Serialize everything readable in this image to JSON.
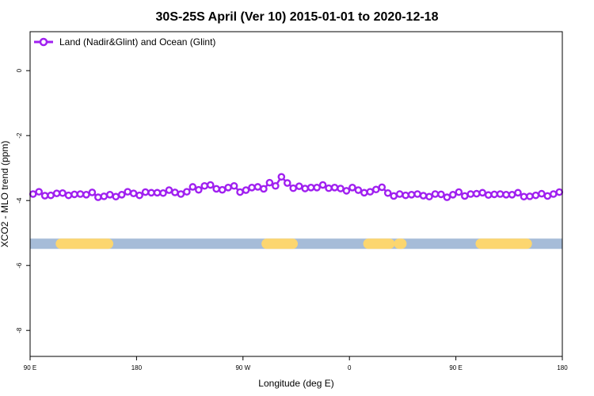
{
  "chart_data": {
    "type": "line",
    "title": "30S-25S April (Ver 10)   2015-01-01 to 2020-12-18",
    "xlabel": "Longitude (deg E)",
    "ylabel": "XCO2 - MLO trend (ppm)",
    "x_ticks": [
      {
        "value": 90,
        "label": "90 E"
      },
      {
        "value": 180,
        "label": "180"
      },
      {
        "value": 270,
        "label": "90 W"
      },
      {
        "value": 360,
        "label": "0"
      },
      {
        "value": 450,
        "label": "90 E"
      },
      {
        "value": 540,
        "label": "180"
      }
    ],
    "y_ticks": [
      {
        "value": 0,
        "label": "0"
      },
      {
        "value": -2,
        "label": "-2"
      },
      {
        "value": -4,
        "label": "-4"
      },
      {
        "value": -6,
        "label": "-6"
      },
      {
        "value": -8,
        "label": "-8"
      }
    ],
    "xlim": [
      90,
      540
    ],
    "ylim": [
      -8.8,
      1.2
    ],
    "legend": {
      "position": "top-left",
      "entries": [
        "Land (Nadir&Glint) and Ocean (Glint)"
      ]
    },
    "series": [
      {
        "name": "Land (Nadir&Glint) and Ocean (Glint)",
        "color": "#a020f0",
        "x": [
          92.5,
          97.5,
          102.5,
          107.5,
          112.5,
          117.5,
          122.5,
          127.5,
          132.5,
          137.5,
          142.5,
          147.5,
          152.5,
          157.5,
          162.5,
          167.5,
          172.5,
          177.5,
          182.5,
          187.5,
          192.5,
          197.5,
          202.5,
          207.5,
          212.5,
          217.5,
          222.5,
          227.5,
          232.5,
          237.5,
          242.5,
          247.5,
          252.5,
          257.5,
          262.5,
          267.5,
          272.5,
          277.5,
          282.5,
          287.5,
          292.5,
          297.5,
          302.5,
          307.5,
          312.5,
          317.5,
          322.5,
          327.5,
          332.5,
          337.5,
          342.5,
          347.5,
          352.5,
          357.5,
          362.5,
          367.5,
          372.5,
          377.5,
          382.5,
          387.5,
          392.5,
          397.5,
          402.5,
          407.5,
          412.5,
          417.5,
          422.5,
          427.5,
          432.5,
          437.5,
          442.5,
          447.5,
          452.5,
          457.5,
          462.5,
          467.5,
          472.5,
          477.5,
          482.5,
          487.5,
          492.5,
          497.5,
          502.5,
          507.5,
          512.5,
          517.5,
          522.5,
          527.5,
          532.5,
          537.5
        ],
        "y": [
          -3.8,
          -3.73,
          -3.85,
          -3.84,
          -3.78,
          -3.77,
          -3.84,
          -3.81,
          -3.8,
          -3.82,
          -3.75,
          -3.9,
          -3.87,
          -3.82,
          -3.88,
          -3.82,
          -3.73,
          -3.78,
          -3.84,
          -3.74,
          -3.76,
          -3.76,
          -3.77,
          -3.68,
          -3.75,
          -3.8,
          -3.73,
          -3.58,
          -3.67,
          -3.55,
          -3.52,
          -3.64,
          -3.67,
          -3.6,
          -3.55,
          -3.74,
          -3.68,
          -3.6,
          -3.58,
          -3.64,
          -3.45,
          -3.55,
          -3.27,
          -3.46,
          -3.62,
          -3.56,
          -3.63,
          -3.6,
          -3.6,
          -3.52,
          -3.62,
          -3.6,
          -3.63,
          -3.7,
          -3.6,
          -3.68,
          -3.76,
          -3.73,
          -3.66,
          -3.59,
          -3.77,
          -3.86,
          -3.8,
          -3.84,
          -3.82,
          -3.8,
          -3.85,
          -3.88,
          -3.8,
          -3.81,
          -3.9,
          -3.82,
          -3.74,
          -3.86,
          -3.8,
          -3.79,
          -3.76,
          -3.83,
          -3.81,
          -3.8,
          -3.82,
          -3.82,
          -3.76,
          -3.88,
          -3.87,
          -3.84,
          -3.79,
          -3.86,
          -3.8,
          -3.74
        ]
      }
    ],
    "surface_band": {
      "y_center": -5.33,
      "ocean_color": "#a6bcd8",
      "land_color": "#fcd66f",
      "land_segments": [
        [
          116,
          156
        ],
        [
          290,
          312
        ],
        [
          376,
          394
        ],
        [
          402,
          404
        ],
        [
          471,
          510
        ]
      ]
    }
  }
}
